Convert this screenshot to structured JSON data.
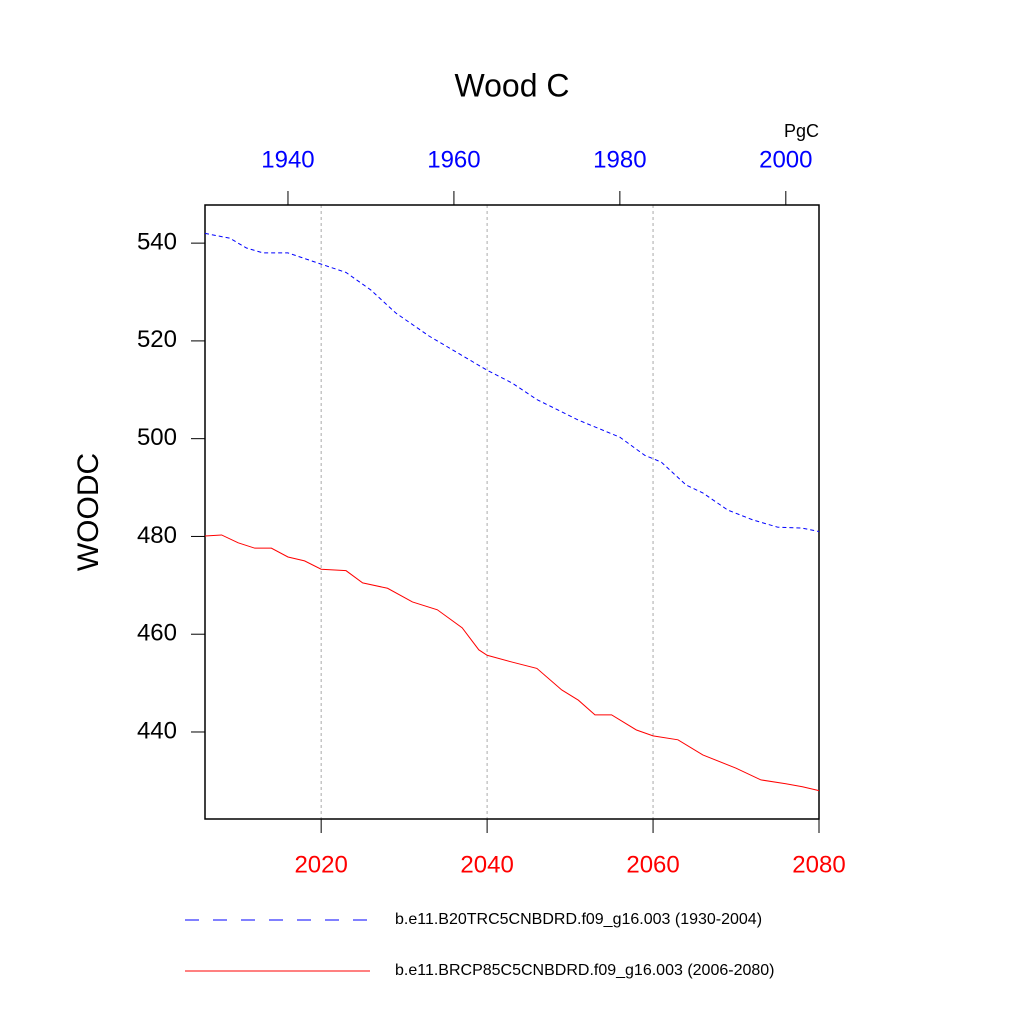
{
  "chart_data": {
    "type": "line",
    "title": "Wood C",
    "y_label": "WOODC",
    "units": "PgC",
    "ylim": [
      422.2,
      547.8
    ],
    "yticks": [
      440,
      460,
      480,
      500,
      520,
      540
    ],
    "xlim": [
      2006,
      2080
    ],
    "xticks": [
      2020,
      2040,
      2060,
      2080
    ],
    "xtick_color": "#ff0000",
    "x2lim": [
      1930,
      2004
    ],
    "x2ticks": [
      1940,
      1960,
      1980,
      2000
    ],
    "x2tick_color": "#0000ff",
    "grid": true,
    "series": [
      {
        "name": "b.e11.B20TRC5CNBDRD.f09_g16.003 (1930-2004)",
        "color": "#0000ff",
        "dash": true,
        "xaxis": "x2",
        "x": [
          1930,
          1933,
          1935,
          1937,
          1940,
          1944,
          1947,
          1950,
          1953,
          1957,
          1960,
          1964,
          1967,
          1970,
          1975,
          1980,
          1983,
          1985,
          1988,
          1990,
          1993,
          1996,
          1999,
          2002,
          2004
        ],
        "values": [
          542,
          541,
          539,
          538,
          538,
          535.7,
          534,
          530.4,
          525.7,
          521,
          518,
          514,
          511.4,
          508,
          503.8,
          500.3,
          496.6,
          495.2,
          490.5,
          488.9,
          485.4,
          483.4,
          481.9,
          481.7,
          481
        ]
      },
      {
        "name": "b.e11.BRCP85C5CNBDRD.f09_g16.003 (2006-2080)",
        "color": "#ff0000",
        "dash": false,
        "xaxis": "x",
        "x": [
          2006,
          2008,
          2010,
          2012,
          2014,
          2016,
          2018,
          2020,
          2023,
          2025,
          2028,
          2031,
          2034,
          2037,
          2039,
          2040,
          2043,
          2046,
          2049,
          2051,
          2053,
          2055,
          2058,
          2060,
          2063,
          2066,
          2070,
          2073,
          2076,
          2078,
          2080
        ],
        "values": [
          480.1,
          480.3,
          478.7,
          477.6,
          477.6,
          475.8,
          475,
          473.3,
          473,
          470.5,
          469.4,
          466.6,
          465,
          461.3,
          456.8,
          455.7,
          454.3,
          453,
          448.6,
          446.5,
          443.5,
          443.5,
          440.4,
          439.2,
          438.4,
          435.3,
          432.6,
          430.2,
          429.4,
          428.8,
          428
        ]
      }
    ]
  }
}
